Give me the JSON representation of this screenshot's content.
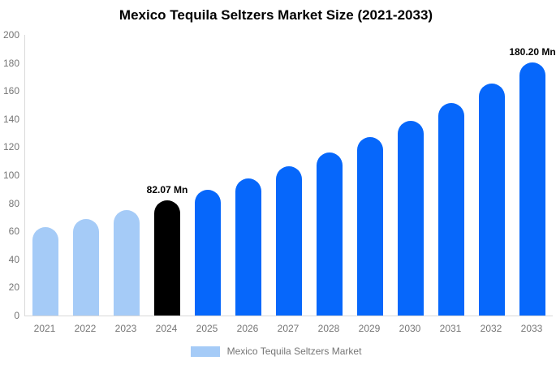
{
  "chart_data": {
    "type": "bar",
    "title": "Mexico Tequila Seltzers Market Size (2021-2033)",
    "legend": "Mexico Tequila Seltzers Market",
    "legend_position": "bottom",
    "grid": false,
    "unit": "Mn",
    "categories": [
      "2021",
      "2022",
      "2023",
      "2024",
      "2025",
      "2026",
      "2027",
      "2028",
      "2029",
      "2030",
      "2031",
      "2032",
      "2033"
    ],
    "values": [
      63.2,
      68.9,
      75.2,
      82.07,
      89.6,
      97.7,
      106.6,
      116.4,
      127.0,
      138.6,
      151.3,
      165.1,
      180.2
    ],
    "ylim": [
      0,
      200
    ],
    "yticks": [
      0,
      20,
      40,
      60,
      80,
      100,
      120,
      140,
      160,
      180,
      200
    ],
    "bar_colors": [
      "#A5CBF7",
      "#A5CBF7",
      "#A5CBF7",
      "#000000",
      "#0667FB",
      "#0667FB",
      "#0667FB",
      "#0667FB",
      "#0667FB",
      "#0667FB",
      "#0667FB",
      "#0667FB",
      "#0667FB"
    ],
    "annotations": [
      {
        "category": "2024",
        "text": "82.07 Mn"
      },
      {
        "category": "2033",
        "text": "180.20 Mn"
      }
    ],
    "colors": {
      "light_blue": "#A5CBF7",
      "primary_blue": "#0667FB",
      "highlight_black": "#000000",
      "axis_line": "#d9d9d9",
      "tick_text": "#757575",
      "annotation_text": "#000000",
      "title_text": "#000000"
    }
  }
}
